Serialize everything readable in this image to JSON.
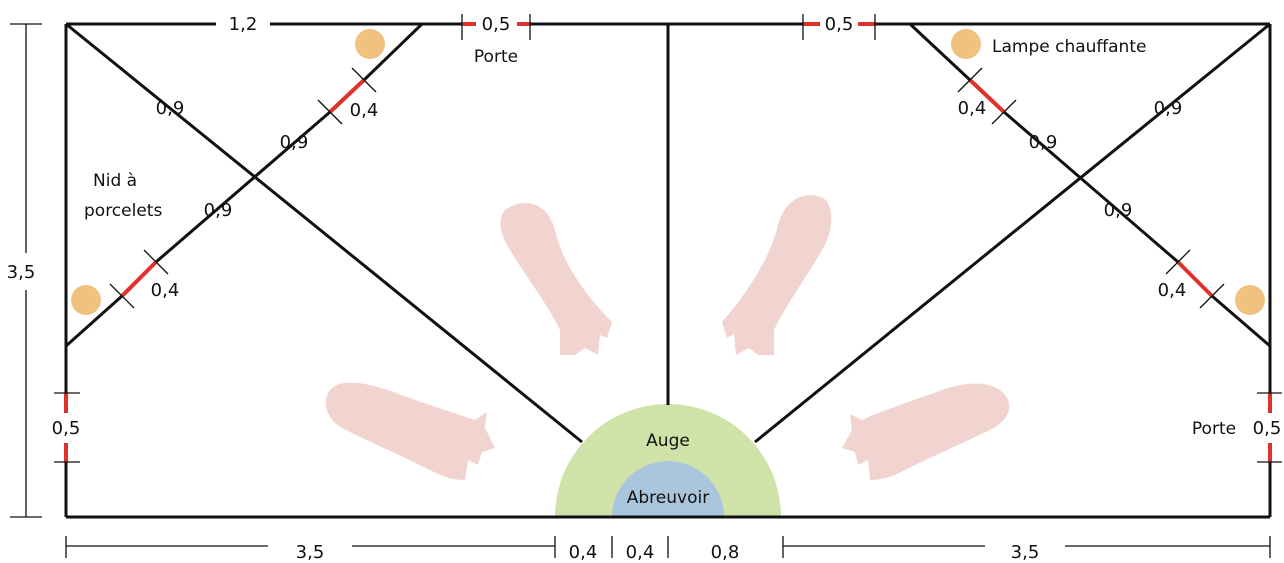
{
  "colors": {
    "line": "#111111",
    "door": "#e0312b",
    "heat_lamp": "#efc27f",
    "trough": "#cfe3a9",
    "water": "#a9c6dc",
    "pig": "#f1d4cf",
    "background": "#ffffff"
  },
  "labels": {
    "top_left_width": "1,2",
    "door_width_top_left": "0,5",
    "door_top": "Porte",
    "door_width_top_right": "0,5",
    "heat_lamp": "Lampe chauffante",
    "piglet_nest_line1": "Nid à",
    "piglet_nest_line2": "porcelets",
    "left_height": "3,5",
    "left_door_width": "0,5",
    "right_door": "Porte",
    "right_door_width": "0,5",
    "trough": "Auge",
    "drinker": "Abreuvoir",
    "nest_segment_left_outer": "0,9",
    "nest_segment_left_inner1": "0,9",
    "nest_segment_left_inner2": "0,9",
    "nest_opening_left_top": "0,4",
    "nest_opening_left_bottom": "0,4",
    "nest_opening_right_top": "0,4",
    "nest_segment_right_inner1": "0,9",
    "nest_segment_right_outer": "0,9",
    "nest_segment_right_inner2": "0,9",
    "nest_opening_right_bottom": "0,4"
  },
  "bottom_dimensions": {
    "left_pen_width": "3,5",
    "trough_left_half": "0,4",
    "trough_right_half": "0,4",
    "trough_gap": "0,8",
    "right_pen_width": "3,5"
  }
}
